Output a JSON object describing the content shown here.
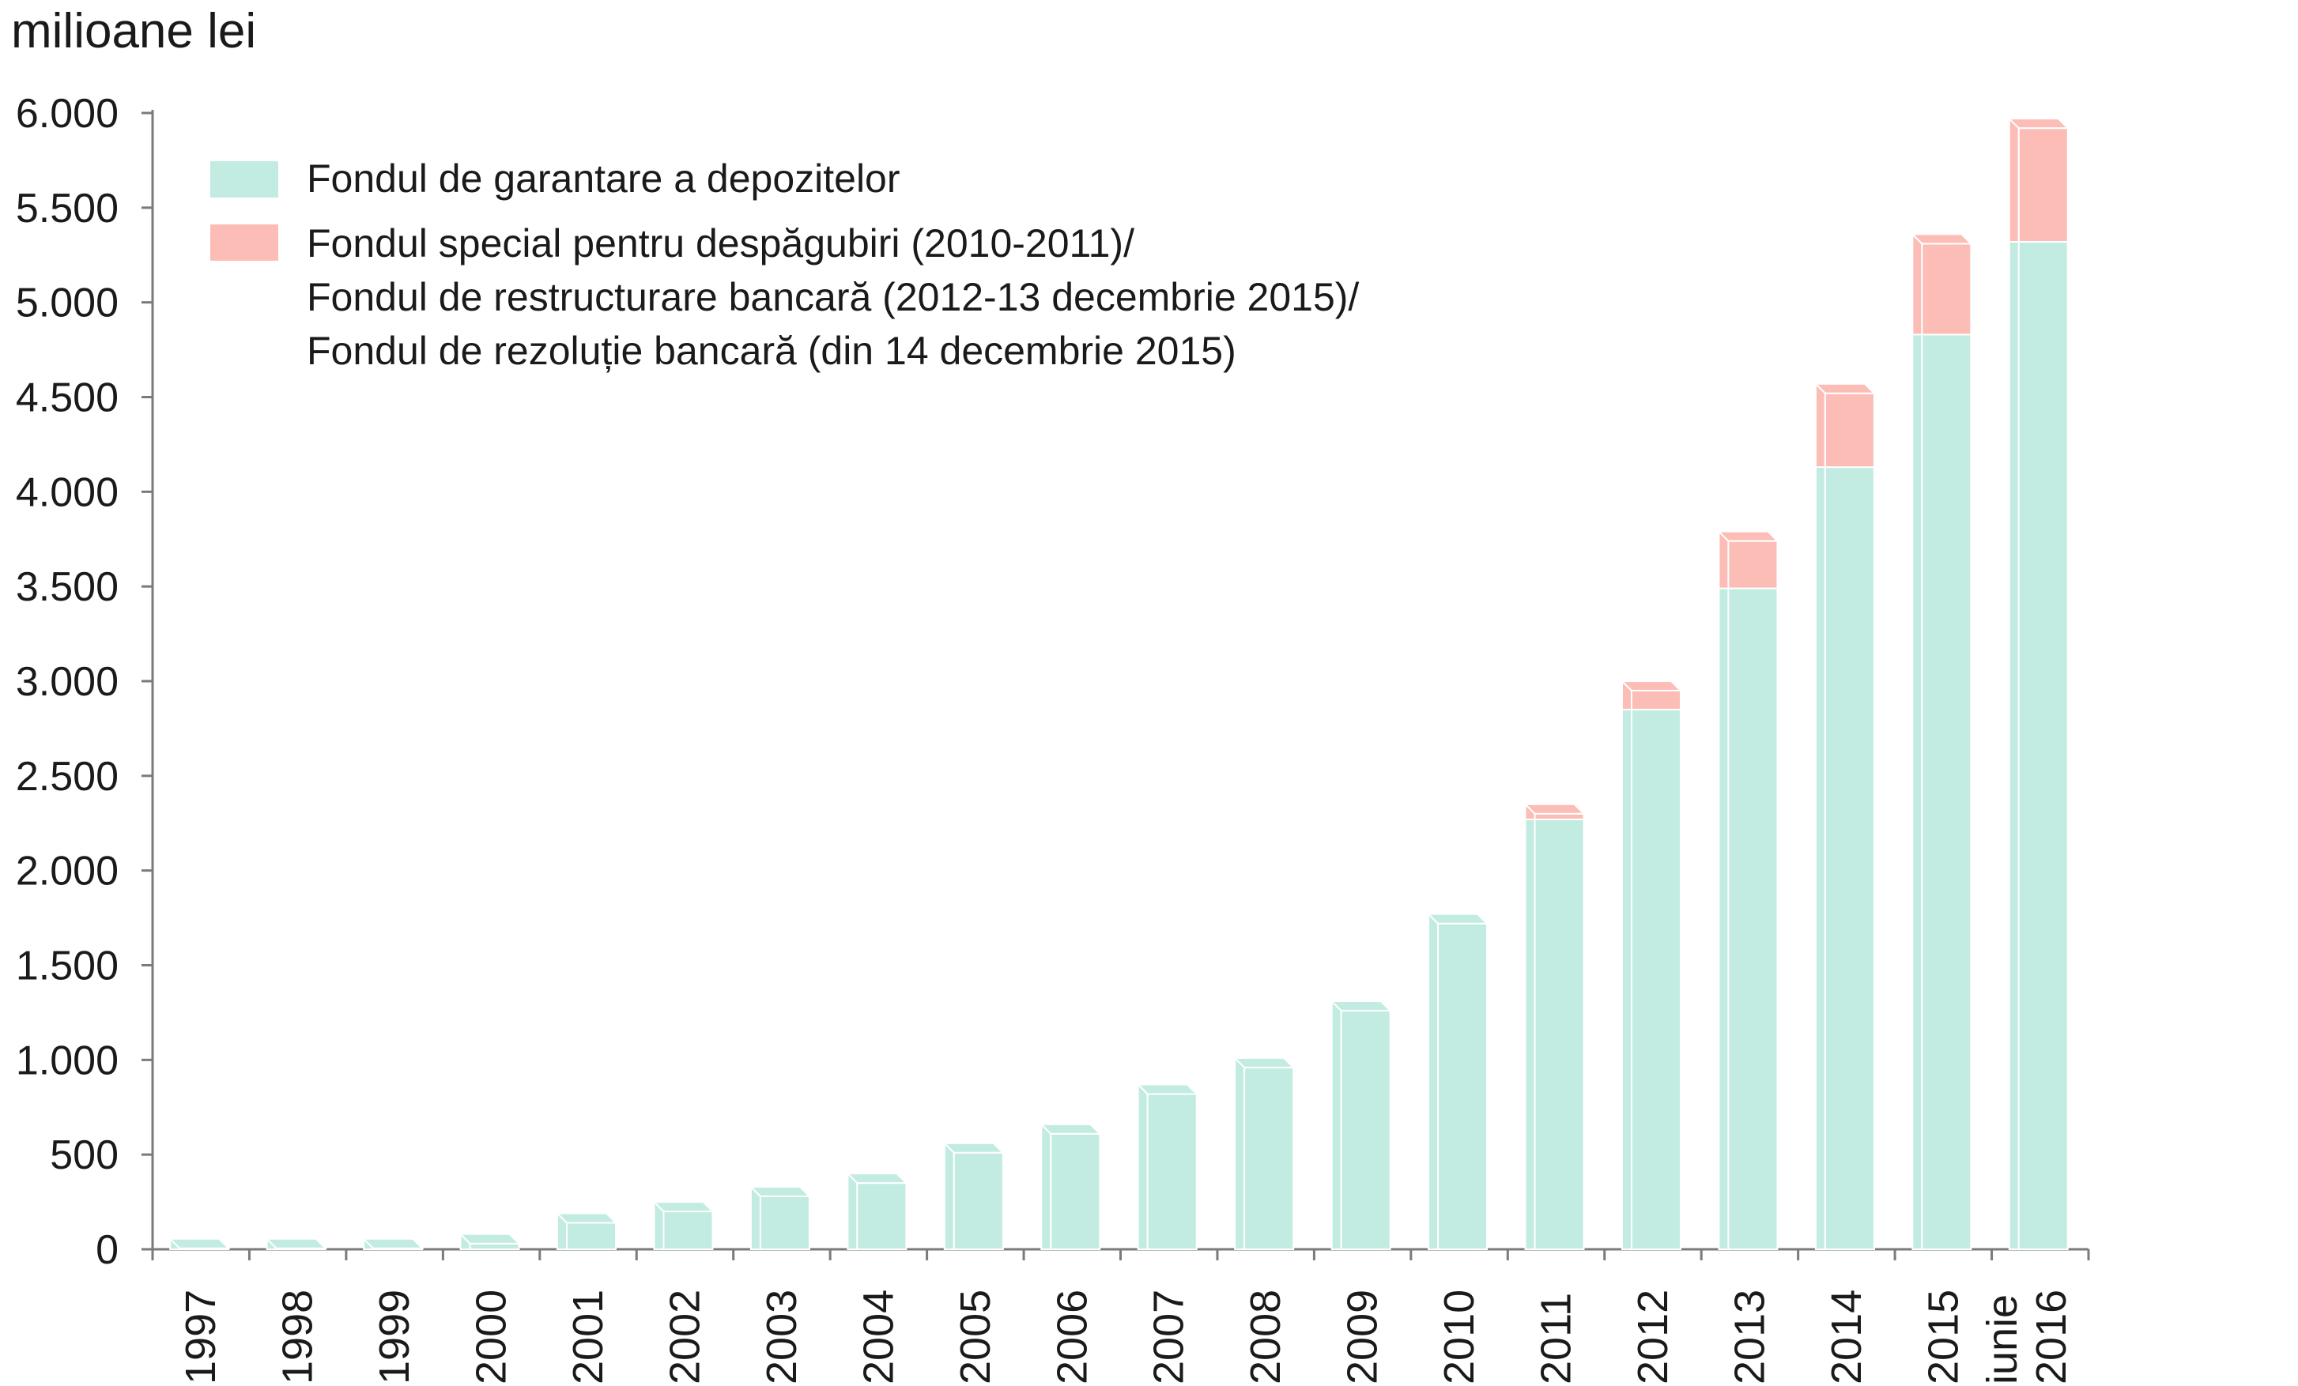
{
  "chart_data": {
    "type": "bar",
    "stacked": true,
    "ylabel": "milioane lei",
    "ylim": [
      0,
      6000
    ],
    "yticks": [
      0,
      500,
      1000,
      1500,
      2000,
      2500,
      3000,
      3500,
      4000,
      4500,
      5000,
      5500,
      6000
    ],
    "ytick_labels": [
      "0",
      "500",
      "1.000",
      "1.500",
      "2.000",
      "2.500",
      "3.000",
      "3.500",
      "4.000",
      "4.500",
      "5.000",
      "5.500",
      "6.000"
    ],
    "categories": [
      "1997",
      "1998",
      "1999",
      "2000",
      "2001",
      "2002",
      "2003",
      "2004",
      "2005",
      "2006",
      "2007",
      "2008",
      "2009",
      "2010",
      "2011",
      "2012",
      "2013",
      "2014",
      "2015",
      "iunie 2016"
    ],
    "category_lines": [
      [
        "1997"
      ],
      [
        "1998"
      ],
      [
        "1999"
      ],
      [
        "2000"
      ],
      [
        "2001"
      ],
      [
        "2002"
      ],
      [
        "2003"
      ],
      [
        "2004"
      ],
      [
        "2005"
      ],
      [
        "2006"
      ],
      [
        "2007"
      ],
      [
        "2008"
      ],
      [
        "2009"
      ],
      [
        "2010"
      ],
      [
        "2011"
      ],
      [
        "2012"
      ],
      [
        "2013"
      ],
      [
        "2014"
      ],
      [
        "2015"
      ],
      [
        "iunie",
        "2016"
      ]
    ],
    "series": [
      {
        "name": "Fondul de garantare a depozitelor",
        "color": "#c2ece1",
        "values": [
          5,
          5,
          5,
          30,
          140,
          200,
          280,
          350,
          510,
          610,
          820,
          960,
          1260,
          1720,
          2270,
          2850,
          3490,
          4130,
          4830,
          5320
        ]
      },
      {
        "name_lines": [
          "Fondul special pentru despăgubiri (2010-2011)/",
          "Fondul de restructurare bancară (2012-13 decembrie 2015)/",
          "Fondul de rezoluție bancară (din 14 decembrie 2015)"
        ],
        "color": "#fcbdb6",
        "values": [
          0,
          0,
          0,
          0,
          0,
          0,
          0,
          0,
          0,
          0,
          0,
          0,
          0,
          0,
          30,
          100,
          250,
          390,
          480,
          600
        ]
      }
    ],
    "legend_position": "top-left",
    "grid": false
  }
}
